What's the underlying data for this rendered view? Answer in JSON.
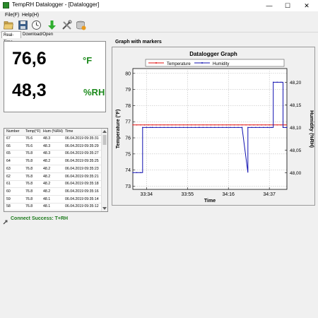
{
  "window": {
    "title": "TempRH Datalogger - [Datalogger]",
    "minimize_glyph": "—",
    "maximize_glyph": "☐",
    "close_glyph": "✕"
  },
  "menu": [
    "File(F)",
    "Help(H)"
  ],
  "toolbar": {
    "icons": [
      "open-folder-icon",
      "save-icon",
      "clock-icon",
      "download-arrow-icon",
      "tools-icon",
      "clear-data-icon"
    ]
  },
  "tabs": [
    {
      "label": "Real-Time",
      "active": true
    },
    {
      "label": "Download/Open",
      "active": false
    }
  ],
  "readout": {
    "temperature": "76,6",
    "temperature_unit": "°F",
    "humidity": "48,3",
    "humidity_unit": "%RH"
  },
  "table": {
    "columns": [
      "Number",
      "Temp(°F)",
      "Hum (%RH)",
      "Time"
    ],
    "rows": [
      [
        "67",
        "76.6",
        "48.3",
        "06.04.2019 09:35:31"
      ],
      [
        "66",
        "76.6",
        "48.3",
        "06.04.2019 09:35:29"
      ],
      [
        "65",
        "76.8",
        "48.3",
        "06.04.2019 09:35:27"
      ],
      [
        "64",
        "76.8",
        "48.2",
        "06.04.2019 09:35:25"
      ],
      [
        "63",
        "76.8",
        "48.2",
        "06.04.2019 09:35:23"
      ],
      [
        "62",
        "76.8",
        "48.2",
        "06.04.2019 09:35:21"
      ],
      [
        "61",
        "76.8",
        "48.2",
        "06.04.2019 09:35:18"
      ],
      [
        "60",
        "76.8",
        "48.2",
        "06.04.2019 09:35:16"
      ],
      [
        "59",
        "76.8",
        "48.1",
        "06.04.2019 09:35:14"
      ],
      [
        "58",
        "76.8",
        "48.1",
        "06.04.2019 09:35:12"
      ]
    ]
  },
  "graph_section_label": "Graph with markers",
  "status": {
    "text": "Connect Success:  T+RH",
    "color": "#1c7a1c"
  },
  "chart_data": {
    "type": "line",
    "title": "Datalogger Graph",
    "xlabel": "Time",
    "ylabel": "Temperature (°F)",
    "y2label": "Humidity (%RH)",
    "x_ticks": [
      "33:34",
      "33:55",
      "34:16",
      "34:37"
    ],
    "x_tick_positions": [
      1,
      22,
      43,
      64
    ],
    "xlim": [
      -6,
      73
    ],
    "ylim": [
      72.8,
      80.3
    ],
    "y_ticks": [
      73,
      74,
      75,
      76,
      77,
      78,
      79,
      80
    ],
    "y2lim": [
      47.963,
      48.2303
    ],
    "y2_ticks": [
      "48,00",
      "48,05",
      "48,10",
      "48,15",
      "48,20"
    ],
    "y2_tick_values": [
      48.0,
      48.05,
      48.1,
      48.15,
      48.2
    ],
    "grid": true,
    "legend_position": "top",
    "series": [
      {
        "name": "Temperature",
        "axis": "left",
        "color": "#e01010",
        "x": [
          -6,
          73
        ],
        "values": [
          76.8,
          76.8
        ]
      },
      {
        "name": "Humidity",
        "axis": "right",
        "color": "#1010b0",
        "x": [
          -6,
          -1,
          -1,
          4,
          4,
          28,
          28,
          50,
          50,
          53,
          53,
          66,
          66,
          71,
          71,
          73
        ],
        "values": [
          48.0,
          48.0,
          48.1,
          48.1,
          48.1,
          48.1,
          48.1,
          48.1,
          48.1,
          48.0,
          48.1,
          48.1,
          48.2,
          48.2,
          48.1,
          48.1
        ]
      }
    ]
  }
}
